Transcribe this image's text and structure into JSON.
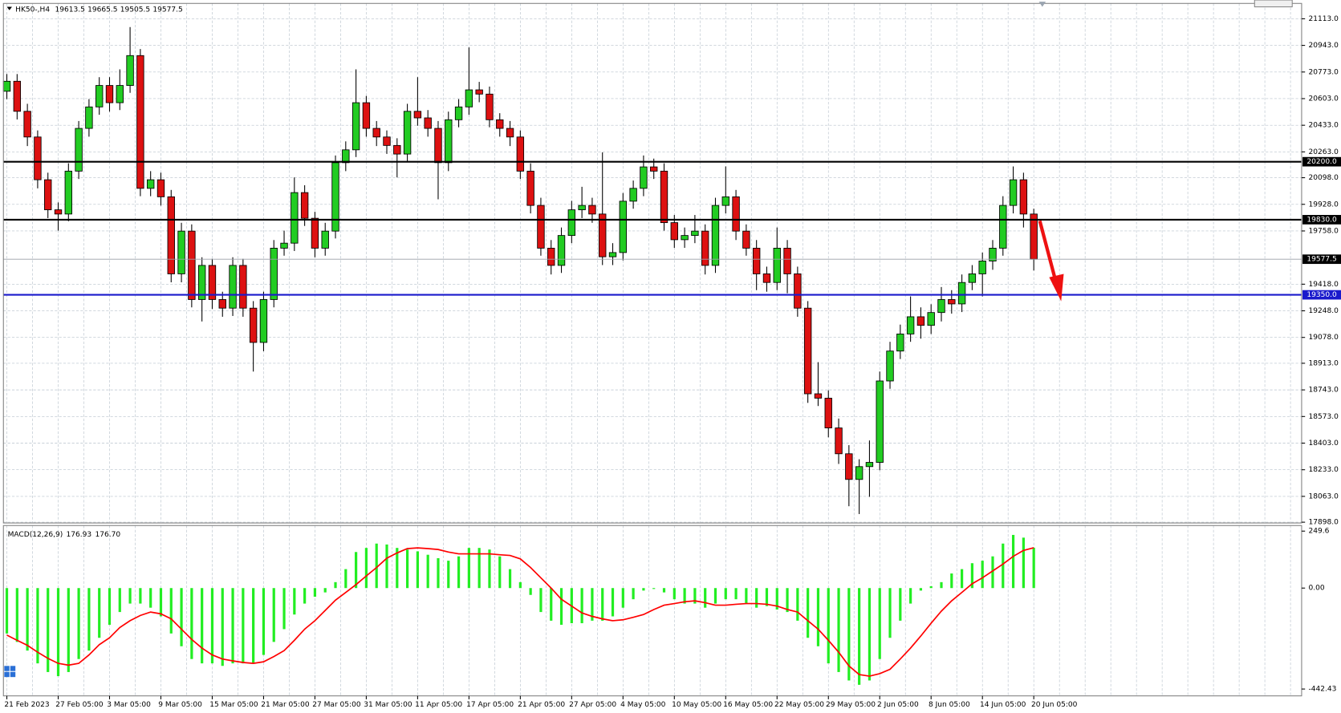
{
  "chart_data": [
    {
      "type": "candlestick",
      "title": "HK50-,H4",
      "ohlc_summary": [
        19613.5,
        19665.5,
        19505.5,
        19577.5
      ],
      "categories": [
        "21 Feb 2023",
        null,
        null,
        null,
        null,
        "27 Feb 05:00",
        null,
        null,
        null,
        null,
        "3 Mar 05:00",
        null,
        null,
        null,
        null,
        "9 Mar 05:00",
        null,
        null,
        null,
        null,
        "15 Mar 05:00",
        null,
        null,
        null,
        null,
        "21 Mar 05:00",
        null,
        null,
        null,
        null,
        "27 Mar 05:00",
        null,
        null,
        null,
        null,
        "31 Mar 05:00",
        null,
        null,
        null,
        null,
        "11 Apr 05:00",
        null,
        null,
        null,
        null,
        "17 Apr 05:00",
        null,
        null,
        null,
        null,
        "21 Apr 05:00",
        null,
        null,
        null,
        null,
        "27 Apr 05:00",
        null,
        null,
        null,
        null,
        "4 May 05:00",
        null,
        null,
        null,
        null,
        "10 May 05:00",
        null,
        null,
        null,
        null,
        "16 May 05:00",
        null,
        null,
        null,
        null,
        "22 May 05:00",
        null,
        null,
        null,
        null,
        "29 May 05:00",
        null,
        null,
        null,
        null,
        "2 Jun 05:00",
        null,
        null,
        null,
        null,
        "8 Jun 05:00",
        null,
        null,
        null,
        null,
        "14 Jun 05:00",
        null,
        null,
        null,
        null,
        "20 Jun 05:00"
      ],
      "ohlc": [
        [
          20650,
          20760,
          20600,
          20714
        ],
        [
          20714,
          20760,
          20470,
          20522
        ],
        [
          20522,
          20570,
          20300,
          20358
        ],
        [
          20358,
          20400,
          20030,
          20085
        ],
        [
          20085,
          20130,
          19840,
          19893
        ],
        [
          19893,
          19940,
          19760,
          19866
        ],
        [
          19866,
          20190,
          19820,
          20140
        ],
        [
          20140,
          20460,
          20090,
          20413
        ],
        [
          20413,
          20600,
          20360,
          20550
        ],
        [
          20550,
          20740,
          20500,
          20687
        ],
        [
          20687,
          20740,
          20520,
          20577
        ],
        [
          20577,
          20790,
          20530,
          20687
        ],
        [
          20687,
          21060,
          20640,
          20878
        ],
        [
          20878,
          20920,
          19980,
          20030
        ],
        [
          20030,
          20140,
          19980,
          20085
        ],
        [
          20085,
          20130,
          19920,
          19976
        ],
        [
          19976,
          20020,
          19430,
          19484
        ],
        [
          19484,
          19810,
          19430,
          19757
        ],
        [
          19757,
          19800,
          19270,
          19320
        ],
        [
          19320,
          19590,
          19180,
          19538
        ],
        [
          19538,
          19580,
          19260,
          19320
        ],
        [
          19320,
          19370,
          19210,
          19265
        ],
        [
          19265,
          19590,
          19215,
          19538
        ],
        [
          19538,
          19580,
          19210,
          19265
        ],
        [
          19265,
          19310,
          18860,
          19046
        ],
        [
          19046,
          19370,
          18990,
          19320
        ],
        [
          19320,
          19700,
          19270,
          19648
        ],
        [
          19648,
          19760,
          19600,
          19680
        ],
        [
          19680,
          20100,
          19630,
          20003
        ],
        [
          20003,
          20050,
          19790,
          19839
        ],
        [
          19839,
          19880,
          19590,
          19648
        ],
        [
          19648,
          19810,
          19600,
          19757
        ],
        [
          19757,
          20240,
          19710,
          20194
        ],
        [
          20194,
          20330,
          20140,
          20276
        ],
        [
          20276,
          20790,
          20230,
          20577
        ],
        [
          20577,
          20620,
          20360,
          20413
        ],
        [
          20413,
          20460,
          20300,
          20358
        ],
        [
          20358,
          20400,
          20250,
          20304
        ],
        [
          20304,
          20350,
          20100,
          20249
        ],
        [
          20249,
          20570,
          20200,
          20522
        ],
        [
          20522,
          20740,
          20430,
          20480
        ],
        [
          20480,
          20530,
          20360,
          20413
        ],
        [
          20413,
          20460,
          19960,
          20194
        ],
        [
          20194,
          20520,
          20140,
          20468
        ],
        [
          20468,
          20600,
          20420,
          20550
        ],
        [
          20550,
          20930,
          20500,
          20659
        ],
        [
          20659,
          20710,
          20580,
          20632
        ],
        [
          20632,
          20680,
          20420,
          20468
        ],
        [
          20468,
          20510,
          20360,
          20413
        ],
        [
          20413,
          20460,
          20300,
          20358
        ],
        [
          20358,
          20400,
          20090,
          20140
        ],
        [
          20140,
          20190,
          19870,
          19921
        ],
        [
          19921,
          19970,
          19600,
          19648
        ],
        [
          19648,
          19700,
          19480,
          19538
        ],
        [
          19538,
          19780,
          19490,
          19729
        ],
        [
          19729,
          19950,
          19680,
          19893
        ],
        [
          19893,
          20040,
          19840,
          19921
        ],
        [
          19921,
          19970,
          19810,
          19866
        ],
        [
          19866,
          20260,
          19540,
          19593
        ],
        [
          19593,
          19680,
          19540,
          19620
        ],
        [
          19620,
          20000,
          19570,
          19948
        ],
        [
          19948,
          20080,
          19900,
          20030
        ],
        [
          20030,
          20240,
          19980,
          20167
        ],
        [
          20167,
          20220,
          20090,
          20140
        ],
        [
          20140,
          20190,
          19760,
          19811
        ],
        [
          19811,
          19860,
          19650,
          19702
        ],
        [
          19702,
          19780,
          19650,
          19729
        ],
        [
          19729,
          19860,
          19680,
          19757
        ],
        [
          19757,
          19800,
          19480,
          19538
        ],
        [
          19538,
          19970,
          19490,
          19921
        ],
        [
          19921,
          20170,
          19870,
          19976
        ],
        [
          19976,
          20020,
          19700,
          19757
        ],
        [
          19757,
          19800,
          19600,
          19648
        ],
        [
          19648,
          19700,
          19380,
          19484
        ],
        [
          19484,
          19530,
          19370,
          19429
        ],
        [
          19429,
          19780,
          19380,
          19648
        ],
        [
          19648,
          19700,
          19360,
          19484
        ],
        [
          19484,
          19530,
          19210,
          19265
        ],
        [
          19265,
          19310,
          18660,
          18718
        ],
        [
          18718,
          18920,
          18640,
          18690
        ],
        [
          18690,
          18740,
          18440,
          18500
        ],
        [
          18500,
          18560,
          18270,
          18335
        ],
        [
          18335,
          18390,
          18000,
          18171
        ],
        [
          18171,
          18300,
          17950,
          18253
        ],
        [
          18253,
          18420,
          18060,
          18280
        ],
        [
          18280,
          18860,
          18230,
          18800
        ],
        [
          18800,
          19050,
          18750,
          18991
        ],
        [
          18991,
          19160,
          18940,
          19100
        ],
        [
          19100,
          19340,
          19050,
          19210
        ],
        [
          19210,
          19270,
          19070,
          19155
        ],
        [
          19155,
          19290,
          19100,
          19237
        ],
        [
          19237,
          19400,
          19180,
          19320
        ],
        [
          19320,
          19380,
          19230,
          19292
        ],
        [
          19292,
          19480,
          19240,
          19429
        ],
        [
          19429,
          19540,
          19380,
          19484
        ],
        [
          19484,
          19620,
          19340,
          19566
        ],
        [
          19566,
          19700,
          19510,
          19648
        ],
        [
          19648,
          19980,
          19600,
          19921
        ],
        [
          19921,
          20170,
          19870,
          20085
        ],
        [
          20085,
          20130,
          19780,
          19866
        ],
        [
          19866,
          19900,
          19505.5,
          19577.5
        ]
      ],
      "up_color": "#22cc22",
      "down_color": "#dd1111",
      "ylim": [
        17893,
        21211
      ],
      "yticks": [
        {
          "value": 21113,
          "label": "21113.0"
        },
        {
          "value": 20943,
          "label": "20943.0"
        },
        {
          "value": 20773,
          "label": "20773.0"
        },
        {
          "value": 20603,
          "label": "20603.0"
        },
        {
          "value": 20433,
          "label": "20433.0"
        },
        {
          "value": 20263,
          "label": "20263.0"
        },
        {
          "value": 20098,
          "label": "20098.0"
        },
        {
          "value": 19928,
          "label": "19928.0"
        },
        {
          "value": 19758,
          "label": "19758.0"
        },
        {
          "value": 19418,
          "label": "19418.0"
        },
        {
          "value": 19248,
          "label": "19248.0"
        },
        {
          "value": 19078,
          "label": "19078.0"
        },
        {
          "value": 18913,
          "label": "18913.0"
        },
        {
          "value": 18743,
          "label": "18743.0"
        },
        {
          "value": 18573,
          "label": "18573.0"
        },
        {
          "value": 18403,
          "label": "18403.0"
        },
        {
          "value": 18233,
          "label": "18233.0"
        },
        {
          "value": 18063,
          "label": "18063.0"
        },
        {
          "value": 17898,
          "label": "17898.0"
        }
      ],
      "hlines": [
        {
          "value": 20200,
          "label": "20200.0",
          "color": "#000000"
        },
        {
          "value": 19830,
          "label": "19830.0",
          "color": "#000000"
        },
        {
          "value": 19350,
          "label": "19350.0",
          "color": "#1a1acc"
        }
      ],
      "last_price": 19577.5,
      "grid": true
    },
    {
      "type": "macd",
      "title": "MACD(12,26,9)",
      "current_values": [
        176.93,
        {
          "value": 176.7,
          "label": "176.70"
        }
      ],
      "ylim": [
        -472.5,
        274
      ],
      "yticks": [
        249.6,
        {
          "value": 0,
          "label": "0.00"
        },
        -442.43
      ],
      "series": [
        {
          "color": "#22ee22",
          "values": [
            -199,
            -236,
            -274,
            -330,
            -368,
            -386,
            -368,
            -311,
            -274,
            -218,
            -161,
            -105,
            -68,
            -68,
            -86,
            -124,
            -199,
            -255,
            -311,
            -330,
            -330,
            -341,
            -330,
            -330,
            -330,
            -293,
            -236,
            -180,
            -116,
            -68,
            -38,
            -19,
            26,
            83,
            158,
            176,
            195,
            191,
            176,
            169,
            161,
            146,
            131,
            120,
            139,
            176,
            176,
            169,
            139,
            83,
            26,
            -30,
            -105,
            -143,
            -161,
            -154,
            -154,
            -143,
            -143,
            -124,
            -86,
            -49,
            -11,
            -4,
            -19,
            -49,
            -68,
            -68,
            -86,
            -68,
            -49,
            -49,
            -68,
            -86,
            -79,
            -94,
            -105,
            -143,
            -218,
            -255,
            -330,
            -368,
            -405,
            -424,
            -405,
            -311,
            -218,
            -143,
            -68,
            -11,
            8,
            26,
            64,
            83,
            109,
            120,
            139,
            195,
            233,
            221,
            176.93
          ]
        },
        {
          "color": "#ff0000",
          "values": [
            -206,
            -229,
            -251,
            -281,
            -308,
            -330,
            -338,
            -330,
            -293,
            -248,
            -218,
            -173,
            -143,
            -120,
            -105,
            -113,
            -135,
            -180,
            -225,
            -263,
            -293,
            -311,
            -319,
            -326,
            -330,
            -323,
            -300,
            -274,
            -229,
            -180,
            -143,
            -98,
            -53,
            -19,
            15,
            53,
            90,
            131,
            154,
            173,
            176,
            173,
            169,
            158,
            150,
            150,
            150,
            150,
            146,
            143,
            128,
            90,
            45,
            0,
            -49,
            -79,
            -109,
            -124,
            -135,
            -143,
            -139,
            -128,
            -116,
            -94,
            -75,
            -68,
            -60,
            -56,
            -64,
            -75,
            -75,
            -71,
            -68,
            -68,
            -71,
            -79,
            -94,
            -105,
            -143,
            -180,
            -229,
            -281,
            -341,
            -379,
            -386,
            -375,
            -356,
            -311,
            -263,
            -210,
            -154,
            -101,
            -56,
            -19,
            19,
            45,
            75,
            105,
            139,
            165,
            176.7
          ]
        }
      ]
    }
  ]
}
